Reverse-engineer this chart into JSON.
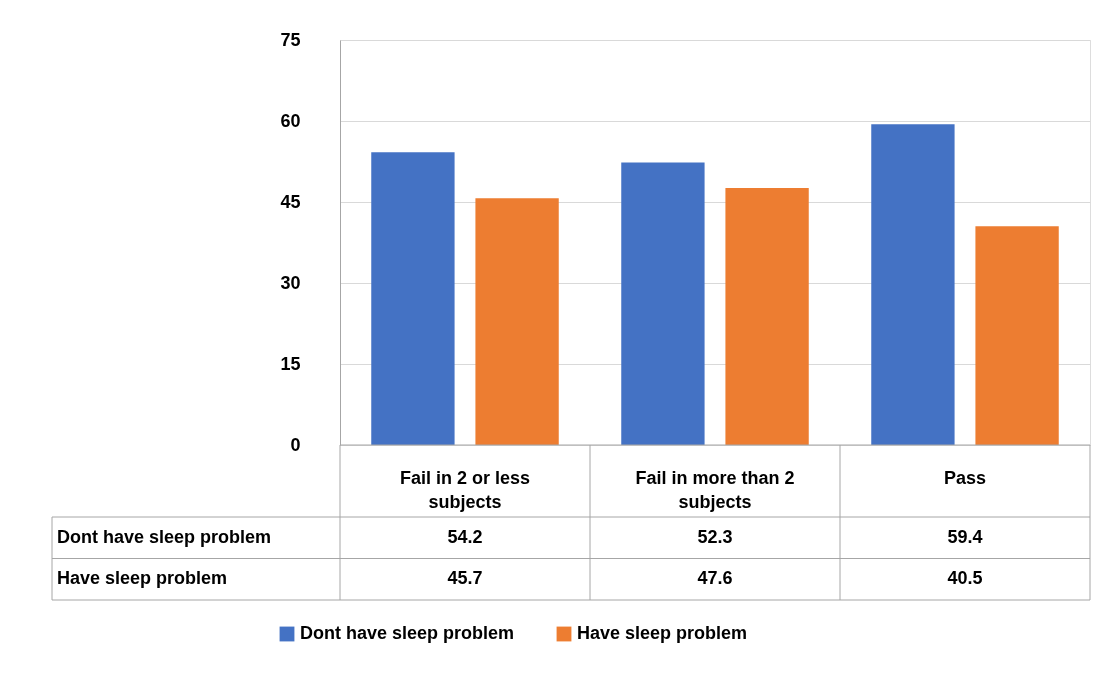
{
  "chart_data": {
    "type": "bar",
    "categories": [
      "Fail in 2 or less subjects",
      "Fail in more than 2 subjects",
      "Pass"
    ],
    "series": [
      {
        "name": "Dont have sleep problem",
        "color": "#4472c4",
        "values": [
          54.2,
          52.3,
          59.4
        ]
      },
      {
        "name": "Have sleep problem",
        "color": "#ed7d31",
        "values": [
          45.7,
          47.6,
          40.5
        ]
      }
    ],
    "ylim": [
      0,
      75
    ],
    "yticks": [
      0,
      15,
      30,
      45,
      60,
      75
    ],
    "grid": "y",
    "legend": "bottom",
    "data_labels": true
  }
}
